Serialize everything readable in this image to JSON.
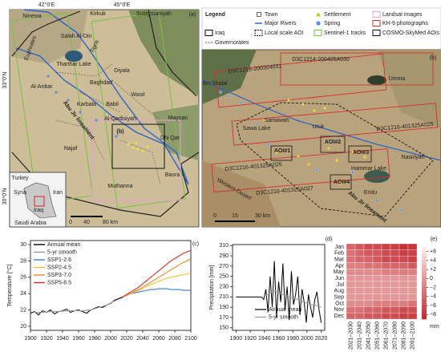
{
  "map_a": {
    "panel": "(a)",
    "coords": [
      "42°0'E",
      "45°0'E",
      "33°0'N",
      "30°0'N"
    ],
    "labels": [
      "Ninewa",
      "Kirkuk",
      "Sulaymaniyah",
      "Salah Al-Din",
      "Tharthar Lake",
      "Euphrates",
      "Tigris",
      "Al-Anbar",
      "Baghdad",
      "Diyala",
      "Karbala",
      "Babil",
      "Wasit",
      "Al-Qadisiyah",
      "Maysan",
      "Dhi Qar",
      "Najaf",
      "Basra",
      "Muthanna",
      "Abu Jir lineament",
      "(b)"
    ],
    "inset_labels": [
      "Turkey",
      "Syria",
      "Iran",
      "Iraq",
      "Saudi Arabia"
    ],
    "scale": [
      "0",
      "40",
      "80 km"
    ]
  },
  "legend": {
    "title": "Legend",
    "items": [
      "Iraq",
      "Governorates",
      "Town",
      "Major Rivers",
      "Local scale AOI",
      "Settlement",
      "Spring",
      "Sentinel-1 tracks",
      "Landsat images",
      "KH-9 photographs",
      "COSMO-SkyMed AOIs"
    ]
  },
  "map_b": {
    "panel": "(b)",
    "labels": [
      "D3C1216-200304031",
      "D3C1214-200405A030",
      "Umma",
      "Ibn Shalal",
      "Samawah",
      "Sawa Lake",
      "Uruk",
      "D3C1216-401325A025",
      "AOI#1",
      "AOI#2",
      "AOI#3",
      "AOI#4",
      "D3C1216-401325A026",
      "Hammar Lake",
      "Nasiriyah",
      "Eridu",
      "Western Desert",
      "D3C1216-401325A027",
      "Abu Jir lineament"
    ],
    "scale": [
      "0",
      "15",
      "30 km"
    ]
  },
  "chart_data": [
    {
      "type": "line",
      "panel": "(c)",
      "y_label": "Temperature [°C]",
      "xlim": [
        1900,
        2100
      ],
      "xticks": [
        1900,
        1920,
        1940,
        1960,
        1980,
        2000,
        2020,
        2040,
        2060,
        2080,
        2100
      ],
      "ylim": [
        19.5,
        30.5
      ],
      "yticks": [
        20,
        22,
        24,
        26,
        28,
        30
      ],
      "series": [
        {
          "name": "Annual mean",
          "color": "#000000",
          "x": [
            1900,
            1905,
            1910,
            1915,
            1920,
            1925,
            1930,
            1935,
            1940,
            1945,
            1950,
            1955,
            1960,
            1965,
            1970,
            1975,
            1980,
            1985,
            1990,
            1995,
            2000,
            2005,
            2010,
            2015,
            2020
          ],
          "values": [
            21.6,
            21.8,
            21.4,
            21.9,
            21.7,
            22.0,
            21.5,
            21.8,
            21.9,
            22.1,
            21.7,
            21.9,
            22.0,
            21.8,
            21.6,
            22.0,
            22.2,
            22.4,
            22.3,
            22.6,
            22.8,
            23.2,
            23.4,
            23.6,
            23.8
          ]
        },
        {
          "name": "5-yr smooth",
          "color": "#9a9a9a",
          "x": [
            1905,
            1915,
            1925,
            1935,
            1945,
            1955,
            1965,
            1975,
            1985,
            1995,
            2005,
            2015
          ],
          "values": [
            21.7,
            21.7,
            21.8,
            21.8,
            21.9,
            21.9,
            21.9,
            22.0,
            22.3,
            22.6,
            23.1,
            23.5
          ]
        },
        {
          "name": "SSP1-2.6",
          "color": "#3b7fc4",
          "x": [
            2015,
            2020,
            2025,
            2030,
            2035,
            2040,
            2045,
            2050,
            2055,
            2060,
            2065,
            2070,
            2075,
            2080,
            2085,
            2090,
            2095,
            2100
          ],
          "values": [
            23.6,
            23.8,
            24.0,
            24.1,
            24.2,
            24.3,
            24.4,
            24.5,
            24.5,
            24.6,
            24.6,
            24.6,
            24.5,
            24.5,
            24.5,
            24.4,
            24.4,
            24.4
          ]
        },
        {
          "name": "SSP2-4.5",
          "color": "#e8c23a",
          "x": [
            2015,
            2020,
            2025,
            2030,
            2035,
            2040,
            2045,
            2050,
            2055,
            2060,
            2065,
            2070,
            2075,
            2080,
            2085,
            2090,
            2095,
            2100
          ],
          "values": [
            23.6,
            23.8,
            24.0,
            24.2,
            24.4,
            24.6,
            24.9,
            25.1,
            25.3,
            25.5,
            25.7,
            25.9,
            26.0,
            26.1,
            26.2,
            26.3,
            26.4,
            26.5
          ]
        },
        {
          "name": "SSP3-7.0",
          "color": "#f08a2c",
          "x": [
            2015,
            2020,
            2025,
            2030,
            2035,
            2040,
            2045,
            2050,
            2055,
            2060,
            2065,
            2070,
            2075,
            2080,
            2085,
            2090,
            2095,
            2100
          ],
          "values": [
            23.6,
            23.8,
            24.0,
            24.3,
            24.5,
            24.8,
            25.1,
            25.4,
            25.7,
            26.0,
            26.3,
            26.6,
            26.9,
            27.2,
            27.5,
            27.8,
            28.0,
            28.3
          ]
        },
        {
          "name": "SSP5-8.5",
          "color": "#d7301f",
          "x": [
            2015,
            2020,
            2025,
            2030,
            2035,
            2040,
            2045,
            2050,
            2055,
            2060,
            2065,
            2070,
            2075,
            2080,
            2085,
            2090,
            2095,
            2100
          ],
          "values": [
            23.6,
            23.9,
            24.2,
            24.5,
            24.8,
            25.2,
            25.6,
            26.0,
            26.4,
            26.8,
            27.2,
            27.6,
            28.0,
            28.3,
            28.6,
            28.9,
            29.1,
            29.3
          ]
        }
      ]
    },
    {
      "type": "line",
      "panel": "(d)",
      "y_label": "Precipitation [mm]",
      "xlim": [
        1895,
        2025
      ],
      "xticks": [
        1900,
        1920,
        1940,
        1960,
        1980,
        2000,
        2020
      ],
      "ylim": [
        145,
        312
      ],
      "yticks": [
        150,
        170,
        190,
        210,
        230,
        250,
        270,
        290,
        310
      ],
      "series": [
        {
          "name": "Annual mean",
          "color": "#000000",
          "x": [
            1900,
            1903,
            1906,
            1909,
            1912,
            1915,
            1918,
            1921,
            1924,
            1927,
            1930,
            1933,
            1936,
            1939,
            1942,
            1945,
            1948,
            1951,
            1954,
            1957,
            1960,
            1963,
            1966,
            1969,
            1972,
            1975,
            1978,
            1981,
            1984,
            1987,
            1990,
            1993,
            1996,
            1999,
            2002,
            2005,
            2008,
            2011,
            2014,
            2017,
            2020
          ],
          "values": [
            210,
            210,
            210,
            210,
            210,
            210,
            210,
            210,
            210,
            210,
            210,
            210,
            210,
            205,
            225,
            180,
            250,
            190,
            280,
            170,
            240,
            200,
            275,
            185,
            230,
            165,
            260,
            195,
            215,
            250,
            175,
            225,
            200,
            160,
            215,
            190,
            170,
            205,
            220,
            185,
            160
          ]
        },
        {
          "name": "5-yr smooth",
          "color": "#9a9a9a",
          "x": [
            1940,
            1945,
            1950,
            1955,
            1960,
            1965,
            1970,
            1975,
            1980,
            1985,
            1990,
            1995,
            2000,
            2005,
            2010,
            2015,
            2020
          ],
          "values": [
            212,
            215,
            220,
            222,
            218,
            215,
            213,
            210,
            208,
            206,
            204,
            200,
            198,
            195,
            194,
            193,
            190
          ]
        }
      ]
    },
    {
      "type": "heatmap",
      "panel": "(e)",
      "unit": "mm",
      "rows": [
        "Jan",
        "Feb",
        "Mar",
        "Apr",
        "May",
        "Jun",
        "Jul",
        "Aug",
        "Sep",
        "Oct",
        "Nov",
        "Dec"
      ],
      "columns": [
        "2021–2030",
        "2031–2040",
        "2041–2050",
        "2051–2060",
        "2061–2070",
        "2071–2080",
        "2081–2090",
        "2091–2100"
      ],
      "values": [
        [
          -4,
          -5,
          -6,
          -6,
          -7,
          -7,
          -8,
          -8
        ],
        [
          -3,
          -4,
          -5,
          -5,
          -6,
          -6,
          -7,
          -7
        ],
        [
          -3,
          -4,
          -4,
          -5,
          -6,
          -6,
          -6,
          -7
        ],
        [
          -2,
          -2,
          -3,
          -3,
          -4,
          -4,
          -4,
          -5
        ],
        [
          -1,
          -1,
          -1,
          -1,
          -2,
          -2,
          -2,
          -2
        ],
        [
          0,
          0,
          0,
          0,
          0,
          0,
          0,
          0
        ],
        [
          0,
          0,
          0,
          0,
          0,
          0,
          0,
          0
        ],
        [
          0,
          0,
          0,
          0,
          0,
          0,
          0,
          0
        ],
        [
          0,
          0,
          0,
          0,
          0,
          0,
          0,
          0
        ],
        [
          -1,
          -1,
          -1,
          -2,
          -2,
          -2,
          -2,
          -3
        ],
        [
          -3,
          -3,
          -4,
          -4,
          -5,
          -5,
          -6,
          -6
        ],
        [
          -4,
          -4,
          -5,
          -5,
          -6,
          -6,
          -7,
          -7
        ]
      ],
      "clim": [
        -9,
        7
      ],
      "colors": [
        "#c1272d",
        "#fdf0ec"
      ],
      "cticks": [
        {
          "value": 6,
          "label": "+6"
        },
        {
          "value": 4,
          "label": "+4"
        },
        {
          "value": 2,
          "label": "+2"
        },
        0,
        {
          "value": -2,
          "label": "−2"
        },
        {
          "value": -4,
          "label": "−4"
        },
        {
          "value": -6,
          "label": "−6"
        },
        {
          "value": -8,
          "label": "−8"
        }
      ]
    }
  ]
}
